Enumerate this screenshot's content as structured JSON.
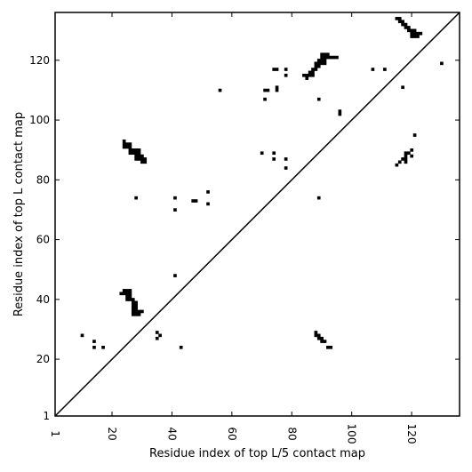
{
  "chart_data": {
    "type": "heatmap",
    "title": "",
    "xlabel": "Residue index of top L/5 contact map",
    "ylabel": "Residue index of top L contact map",
    "xlim": [
      1,
      136
    ],
    "ylim": [
      1,
      136
    ],
    "x_ticks": [
      1,
      20,
      40,
      60,
      80,
      100,
      120
    ],
    "y_ticks": [
      1,
      20,
      40,
      60,
      80,
      100,
      120
    ],
    "x_tick_rotation": "vertical",
    "grid": false,
    "diagonal_line": true,
    "cell_color": "#000000",
    "background_color": "#ffffff",
    "contacts": [
      [
        115,
        134
      ],
      [
        116,
        134
      ],
      [
        116,
        133
      ],
      [
        117,
        133
      ],
      [
        117,
        132
      ],
      [
        118,
        132
      ],
      [
        118,
        131
      ],
      [
        119,
        131
      ],
      [
        119,
        130
      ],
      [
        120,
        130
      ],
      [
        121,
        130
      ],
      [
        120,
        129
      ],
      [
        121,
        129
      ],
      [
        122,
        129
      ],
      [
        123,
        129
      ],
      [
        120,
        128
      ],
      [
        121,
        128
      ],
      [
        122,
        128
      ],
      [
        130,
        119
      ],
      [
        74,
        117
      ],
      [
        75,
        117
      ],
      [
        78,
        117
      ],
      [
        107,
        117
      ],
      [
        111,
        117
      ],
      [
        78,
        115
      ],
      [
        84,
        115
      ],
      [
        85,
        115
      ],
      [
        86,
        115
      ],
      [
        87,
        115
      ],
      [
        85,
        114
      ],
      [
        86,
        116
      ],
      [
        87,
        116
      ],
      [
        87,
        117
      ],
      [
        88,
        117
      ],
      [
        88,
        118
      ],
      [
        89,
        118
      ],
      [
        88,
        119
      ],
      [
        89,
        119
      ],
      [
        90,
        119
      ],
      [
        91,
        119
      ],
      [
        89,
        120
      ],
      [
        90,
        120
      ],
      [
        91,
        120
      ],
      [
        90,
        121
      ],
      [
        91,
        121
      ],
      [
        92,
        121
      ],
      [
        93,
        121
      ],
      [
        94,
        121
      ],
      [
        95,
        121
      ],
      [
        90,
        122
      ],
      [
        91,
        122
      ],
      [
        92,
        122
      ],
      [
        56,
        110
      ],
      [
        71,
        110
      ],
      [
        72,
        110
      ],
      [
        75,
        110
      ],
      [
        75,
        111
      ],
      [
        117,
        111
      ],
      [
        71,
        107
      ],
      [
        89,
        107
      ],
      [
        96,
        103
      ],
      [
        96,
        102
      ],
      [
        24,
        93
      ],
      [
        24,
        92
      ],
      [
        25,
        92
      ],
      [
        26,
        92
      ],
      [
        24,
        91
      ],
      [
        25,
        91
      ],
      [
        26,
        91
      ],
      [
        26,
        90
      ],
      [
        27,
        90
      ],
      [
        28,
        90
      ],
      [
        29,
        90
      ],
      [
        26,
        89
      ],
      [
        27,
        89
      ],
      [
        28,
        89
      ],
      [
        29,
        89
      ],
      [
        28,
        88
      ],
      [
        29,
        88
      ],
      [
        30,
        88
      ],
      [
        28,
        87
      ],
      [
        29,
        87
      ],
      [
        30,
        87
      ],
      [
        31,
        87
      ],
      [
        30,
        86
      ],
      [
        31,
        86
      ],
      [
        121,
        95
      ],
      [
        70,
        89
      ],
      [
        74,
        89
      ],
      [
        118,
        89
      ],
      [
        119,
        89
      ],
      [
        120,
        90
      ],
      [
        118,
        88
      ],
      [
        120,
        88
      ],
      [
        74,
        87
      ],
      [
        78,
        87
      ],
      [
        117,
        87
      ],
      [
        118,
        87
      ],
      [
        116,
        86
      ],
      [
        118,
        86
      ],
      [
        115,
        85
      ],
      [
        78,
        84
      ],
      [
        52,
        76
      ],
      [
        28,
        74
      ],
      [
        41,
        74
      ],
      [
        89,
        74
      ],
      [
        47,
        73
      ],
      [
        48,
        73
      ],
      [
        52,
        72
      ],
      [
        41,
        70
      ],
      [
        41,
        48
      ],
      [
        24,
        43
      ],
      [
        25,
        43
      ],
      [
        26,
        43
      ],
      [
        23,
        42
      ],
      [
        24,
        42
      ],
      [
        25,
        42
      ],
      [
        26,
        42
      ],
      [
        25,
        41
      ],
      [
        26,
        41
      ],
      [
        25,
        40
      ],
      [
        26,
        40
      ],
      [
        27,
        40
      ],
      [
        27,
        39
      ],
      [
        28,
        39
      ],
      [
        27,
        38
      ],
      [
        28,
        38
      ],
      [
        27,
        37
      ],
      [
        28,
        37
      ],
      [
        27,
        36
      ],
      [
        28,
        36
      ],
      [
        29,
        36
      ],
      [
        30,
        36
      ],
      [
        27,
        35
      ],
      [
        28,
        35
      ],
      [
        29,
        35
      ],
      [
        35,
        29
      ],
      [
        10,
        28
      ],
      [
        36,
        28
      ],
      [
        88,
        29
      ],
      [
        88,
        28
      ],
      [
        89,
        28
      ],
      [
        35,
        27
      ],
      [
        89,
        27
      ],
      [
        90,
        27
      ],
      [
        90,
        26
      ],
      [
        91,
        26
      ],
      [
        14,
        26
      ],
      [
        14,
        24
      ],
      [
        17,
        24
      ],
      [
        43,
        24
      ],
      [
        92,
        24
      ],
      [
        93,
        24
      ]
    ]
  }
}
